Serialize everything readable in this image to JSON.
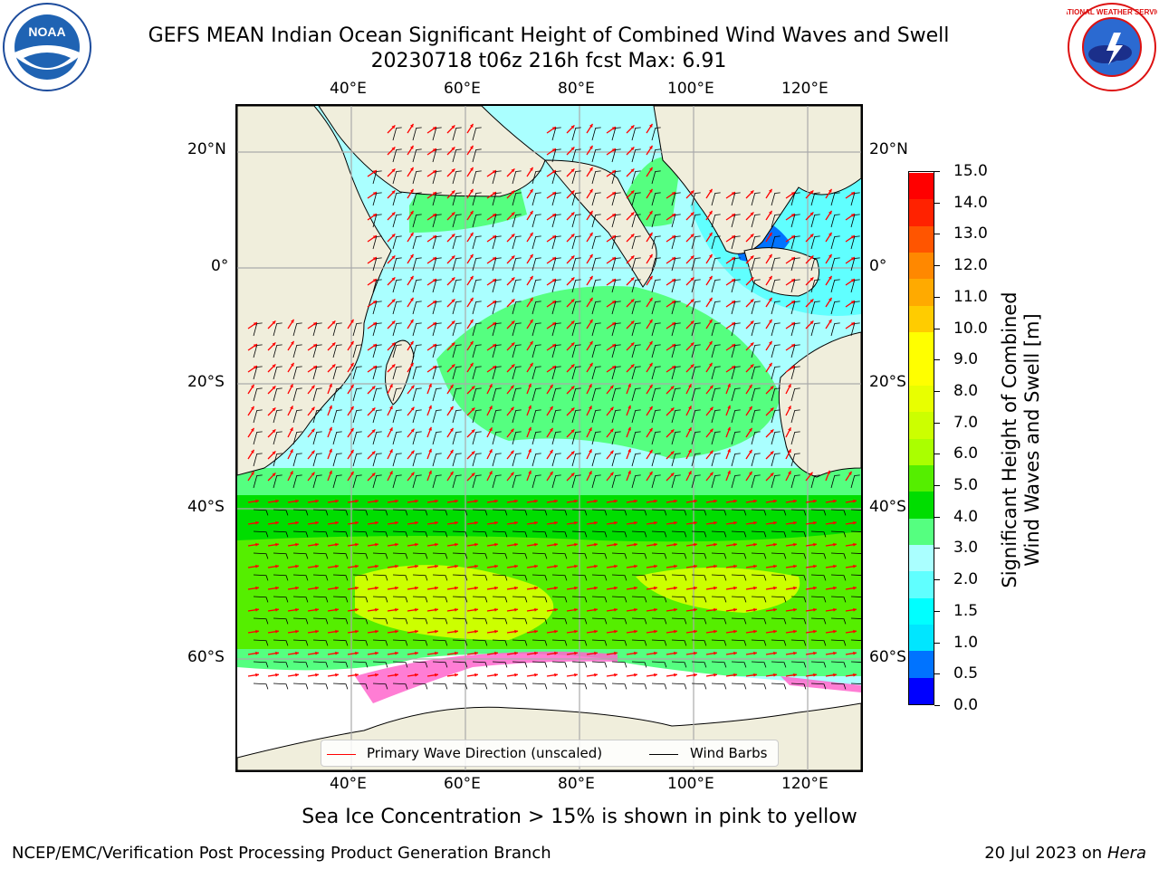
{
  "title": {
    "line1": "GEFS MEAN Indian Ocean Significant Height of Combined Wind Waves and Swell",
    "line2": "20230718 t06z 216h fcst   Max: 6.91"
  },
  "logos": {
    "left": {
      "name": "noaa-logo",
      "text": "NOAA"
    },
    "right": {
      "name": "nws-logo",
      "text": "NATIONAL WEATHER SERVICE"
    }
  },
  "map": {
    "lon_labels_top": [
      "40°E",
      "60°E",
      "80°E",
      "100°E",
      "120°E"
    ],
    "lon_labels_bottom": [
      "40°E",
      "60°E",
      "80°E",
      "100°E",
      "120°E"
    ],
    "lat_labels_left": [
      "20°N",
      "0°",
      "20°S",
      "40°S",
      "60°S"
    ],
    "lat_labels_right": [
      "20°N",
      "0°",
      "20°S",
      "40°S",
      "60°S"
    ],
    "land_color": "#f0eedc",
    "legend": {
      "wave_direction": "Primary Wave Direction (unscaled)",
      "wave_color": "#ff0000",
      "wind_barbs": "Wind Barbs",
      "barb_color": "#000000"
    }
  },
  "colorbar": {
    "ticks": [
      "15.0",
      "14.0",
      "13.0",
      "12.0",
      "11.0",
      "10.0",
      "9.0",
      "8.0",
      "7.0",
      "6.0",
      "5.0",
      "4.0",
      "3.0",
      "2.0",
      "1.5",
      "1.0",
      "0.5",
      "0.0"
    ],
    "label_line1": "Significant Height of Combined",
    "label_line2": "Wind Waves and Swell [m]",
    "colors": [
      "#0000ff",
      "#0073ff",
      "#00e6ff",
      "#00ffff",
      "#60ffff",
      "#aaffff",
      "#55ff80",
      "#00dd00",
      "#55ee00",
      "#aaff00",
      "#ccff00",
      "#e8ff00",
      "#ffff00",
      "#ffff00",
      "#ffcc00",
      "#ffaa00",
      "#ff8800",
      "#ff5500",
      "#ff2200",
      "#ff0000"
    ]
  },
  "note": "Sea Ice Concentration > 15% is shown in pink to yellow",
  "footer": {
    "left": "NCEP/EMC/Verification Post Processing Product Generation Branch",
    "date": "20 Jul 2023 on ",
    "host": "Hera"
  }
}
